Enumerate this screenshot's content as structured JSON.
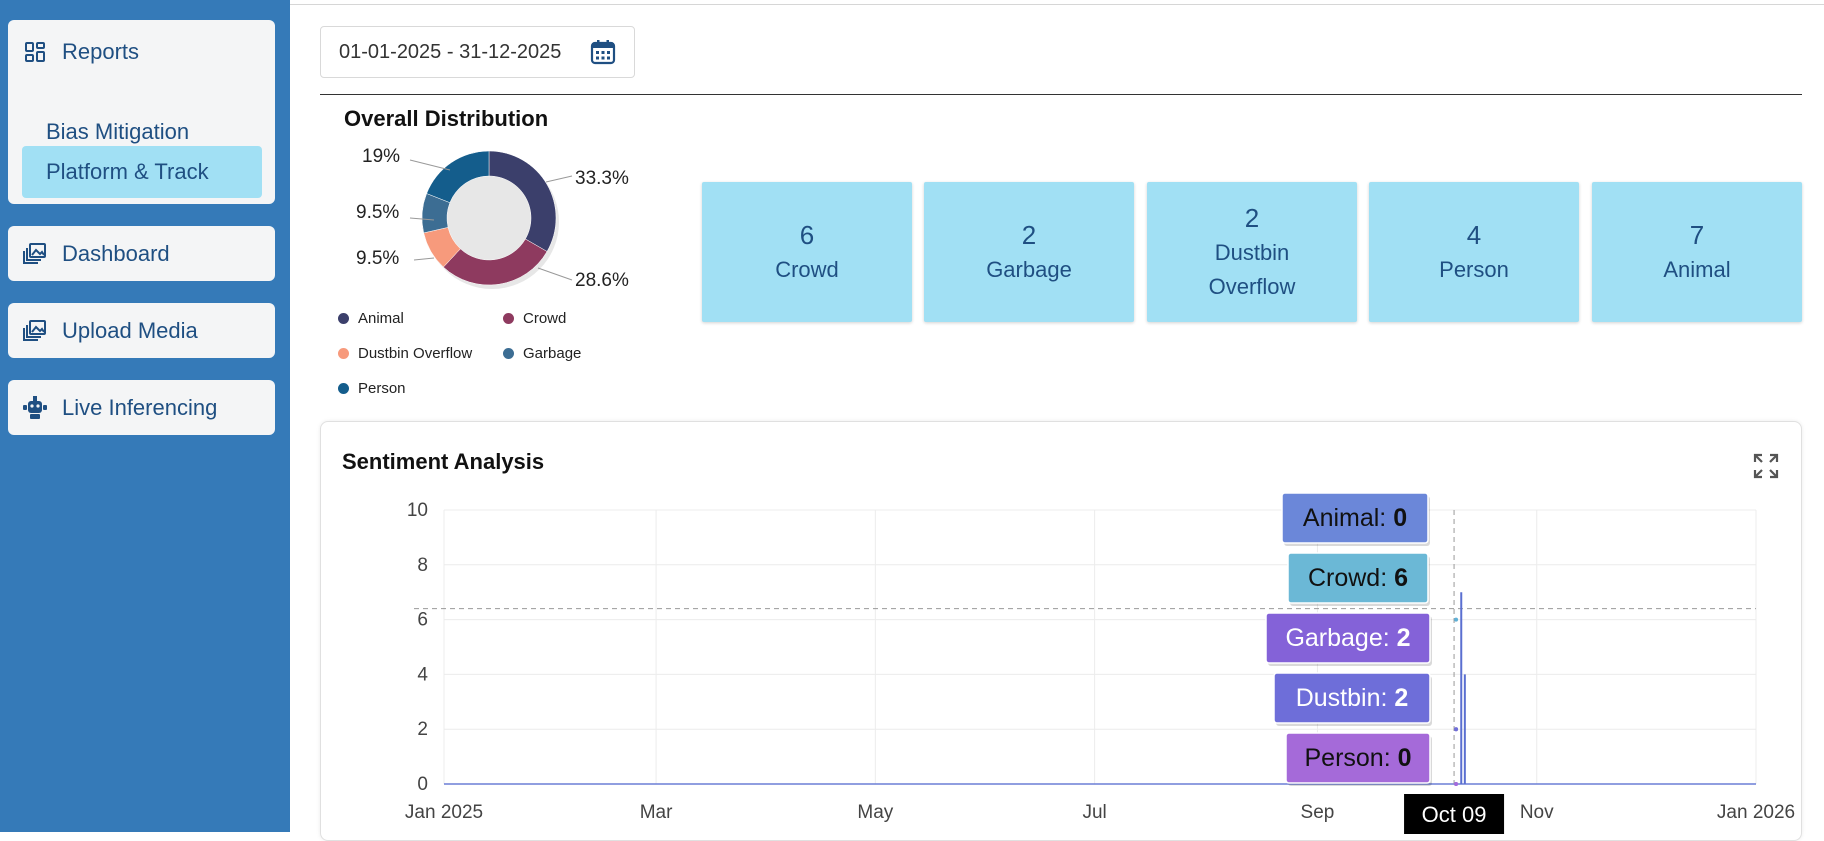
{
  "sidebar": {
    "reports": {
      "label": "Reports",
      "icon": "grid-icon"
    },
    "sub_items": [
      {
        "label": "Bias Mitigation",
        "active": false
      },
      {
        "label": "Platform & Track",
        "active": true
      }
    ],
    "items": [
      {
        "label": "Dashboard",
        "icon": "gallery-icon"
      },
      {
        "label": "Upload Media",
        "icon": "gallery-icon"
      },
      {
        "label": "Live Inferencing",
        "icon": "robot-icon"
      }
    ]
  },
  "date_range": {
    "value": "01-01-2025 - 31-12-2025",
    "icon": "calendar-icon"
  },
  "distribution": {
    "title": "Overall Distribution",
    "slices": [
      {
        "name": "Animal",
        "value": 7,
        "pct": "33.3%",
        "color": "#3b3f6b"
      },
      {
        "name": "Crowd",
        "value": 6,
        "pct": "28.6%",
        "color": "#8e3a5f"
      },
      {
        "name": "Dustbin Overflow",
        "value": 2,
        "pct": "9.5%",
        "color": "#f79a7c"
      },
      {
        "name": "Garbage",
        "value": 2,
        "pct": "9.5%",
        "color": "#3c6d93"
      },
      {
        "name": "Person",
        "value": 4,
        "pct": "19%",
        "color": "#145d8c"
      }
    ]
  },
  "stats": [
    {
      "value": "6",
      "label": "Crowd"
    },
    {
      "value": "2",
      "label": "Garbage"
    },
    {
      "value": "2",
      "label": "Dustbin Overflow"
    },
    {
      "value": "4",
      "label": "Person"
    },
    {
      "value": "7",
      "label": "Animal"
    }
  ],
  "sentiment": {
    "title": "Sentiment Analysis",
    "expand_icon": "expand-icon"
  },
  "chart_data": {
    "type": "line",
    "title": "Sentiment Analysis",
    "xlabel": "",
    "ylabel": "",
    "ylim": [
      0,
      10
    ],
    "xlim": [
      "2025-01-01",
      "2026-01-01"
    ],
    "y_ticks": [
      "0",
      "2",
      "4",
      "6",
      "8",
      "10"
    ],
    "x_ticks": [
      {
        "label": "Jan 2025",
        "date": "2025-01-01"
      },
      {
        "label": "Mar",
        "date": "2025-03-01"
      },
      {
        "label": "May",
        "date": "2025-05-01"
      },
      {
        "label": "Jul",
        "date": "2025-07-01"
      },
      {
        "label": "Sep",
        "date": "2025-09-01"
      },
      {
        "label": "Nov",
        "date": "2025-11-01"
      },
      {
        "label": "Jan 2026",
        "date": "2026-01-01"
      }
    ],
    "grid": true,
    "crosshair": {
      "date": "2025-10-09",
      "label": "Oct 09",
      "y": 6.4
    },
    "series": [
      {
        "name": "Animal",
        "color": "#6b7fd6",
        "points": [
          [
            "2025-10-09",
            0
          ]
        ]
      },
      {
        "name": "Crowd",
        "color": "#5fb0d6",
        "points": [
          [
            "2025-10-09",
            6
          ]
        ]
      },
      {
        "name": "Garbage",
        "color": "#8a63d9",
        "points": [
          [
            "2025-10-09",
            2
          ]
        ]
      },
      {
        "name": "Dustbin",
        "color": "#6f6fd8",
        "points": [
          [
            "2025-10-09",
            2
          ]
        ]
      },
      {
        "name": "Person",
        "color": "#a66bdc",
        "points": [
          [
            "2025-10-09",
            0
          ]
        ]
      }
    ],
    "spikes": [
      {
        "date": "2025-10-11",
        "value": 7,
        "color": "#5a6fd0"
      },
      {
        "date": "2025-10-12",
        "value": 4,
        "color": "#5a6fd0"
      }
    ],
    "tooltips": [
      {
        "label": "Animal: ",
        "value": "0",
        "color": "#6b87d9",
        "text_color": "#111"
      },
      {
        "label": "Crowd: ",
        "value": "6",
        "color": "#6bb8d6",
        "text_color": "#111"
      },
      {
        "label": "Garbage: ",
        "value": "2",
        "color": "#8462d8",
        "text_color": "#fff"
      },
      {
        "label": "Dustbin: ",
        "value": "2",
        "color": "#6e6ed9",
        "text_color": "#fff"
      },
      {
        "label": "Person: ",
        "value": "0",
        "color": "#a56ad9",
        "text_color": "#111"
      }
    ]
  }
}
